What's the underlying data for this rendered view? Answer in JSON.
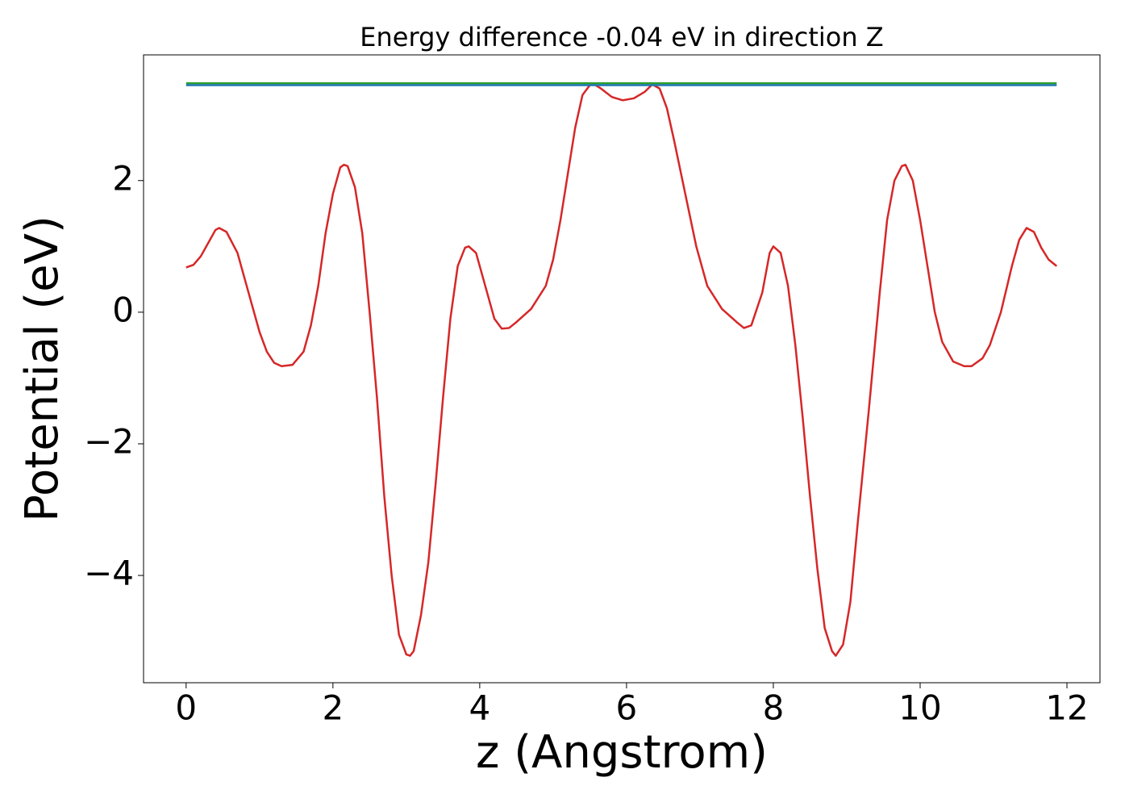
{
  "chart_data": {
    "type": "line",
    "title": "Energy difference -0.04 eV in direction Z",
    "xlabel": "z (Angstrom)",
    "ylabel": "Potential (eV)",
    "xlim": [
      -0.58,
      12.45
    ],
    "ylim": [
      -5.63,
      3.91
    ],
    "xticks": [
      0,
      2,
      4,
      6,
      8,
      10,
      12
    ],
    "yticks": [
      {
        "value": -4,
        "label": "−4"
      },
      {
        "value": -2,
        "label": "−2"
      },
      0,
      2
    ],
    "grid": false,
    "series": [
      {
        "color": "#d62728",
        "x": [
          0,
          0.1,
          0.2,
          0.3,
          0.4,
          0.45,
          0.55,
          0.7,
          0.85,
          1.0,
          1.1,
          1.2,
          1.3,
          1.45,
          1.6,
          1.7,
          1.8,
          1.9,
          2.0,
          2.1,
          2.15,
          2.2,
          2.3,
          2.4,
          2.5,
          2.6,
          2.7,
          2.8,
          2.9,
          3.0,
          3.05,
          3.1,
          3.2,
          3.3,
          3.4,
          3.5,
          3.6,
          3.7,
          3.8,
          3.85,
          3.95,
          4.05,
          4.2,
          4.3,
          4.4,
          4.5,
          4.7,
          4.9,
          5.0,
          5.1,
          5.2,
          5.3,
          5.4,
          5.5,
          5.55,
          5.65,
          5.8,
          5.95,
          6.1,
          6.25,
          6.35,
          6.45,
          6.55,
          6.65,
          6.8,
          6.95,
          7.1,
          7.3,
          7.5,
          7.6,
          7.7,
          7.85,
          7.95,
          8.0,
          8.1,
          8.2,
          8.3,
          8.4,
          8.5,
          8.6,
          8.7,
          8.8,
          8.85,
          8.95,
          9.05,
          9.15,
          9.3,
          9.45,
          9.55,
          9.65,
          9.75,
          9.8,
          9.9,
          10.0,
          10.1,
          10.2,
          10.3,
          10.45,
          10.6,
          10.7,
          10.85,
          10.95,
          11.1,
          11.25,
          11.35,
          11.45,
          11.55,
          11.65,
          11.75,
          11.86
        ],
        "values": [
          0.68,
          0.72,
          0.85,
          1.05,
          1.25,
          1.28,
          1.22,
          0.9,
          0.3,
          -0.3,
          -0.6,
          -0.77,
          -0.82,
          -0.8,
          -0.6,
          -0.2,
          0.4,
          1.2,
          1.8,
          2.2,
          2.24,
          2.22,
          1.9,
          1.2,
          0.0,
          -1.3,
          -2.8,
          -4.0,
          -4.9,
          -5.2,
          -5.22,
          -5.15,
          -4.6,
          -3.8,
          -2.6,
          -1.3,
          -0.1,
          0.7,
          0.98,
          1.0,
          0.9,
          0.5,
          -0.1,
          -0.25,
          -0.24,
          -0.15,
          0.05,
          0.4,
          0.8,
          1.4,
          2.1,
          2.8,
          3.3,
          3.45,
          3.47,
          3.4,
          3.27,
          3.22,
          3.25,
          3.35,
          3.46,
          3.4,
          3.1,
          2.6,
          1.8,
          1.0,
          0.4,
          0.05,
          -0.15,
          -0.24,
          -0.2,
          0.3,
          0.9,
          1.0,
          0.9,
          0.4,
          -0.5,
          -1.6,
          -2.8,
          -3.9,
          -4.8,
          -5.15,
          -5.22,
          -5.05,
          -4.4,
          -3.2,
          -1.5,
          0.3,
          1.4,
          2.0,
          2.22,
          2.24,
          2.0,
          1.4,
          0.7,
          0.0,
          -0.45,
          -0.75,
          -0.82,
          -0.82,
          -0.7,
          -0.5,
          0.0,
          0.7,
          1.1,
          1.28,
          1.22,
          0.98,
          0.8,
          0.7
        ]
      },
      {
        "color": "#2ca02c",
        "x": [
          0,
          11.86
        ],
        "values": [
          3.48,
          3.48
        ]
      },
      {
        "color": "#1f77b4",
        "x": [
          0,
          11.86
        ],
        "values": [
          3.45,
          3.45
        ]
      }
    ]
  }
}
